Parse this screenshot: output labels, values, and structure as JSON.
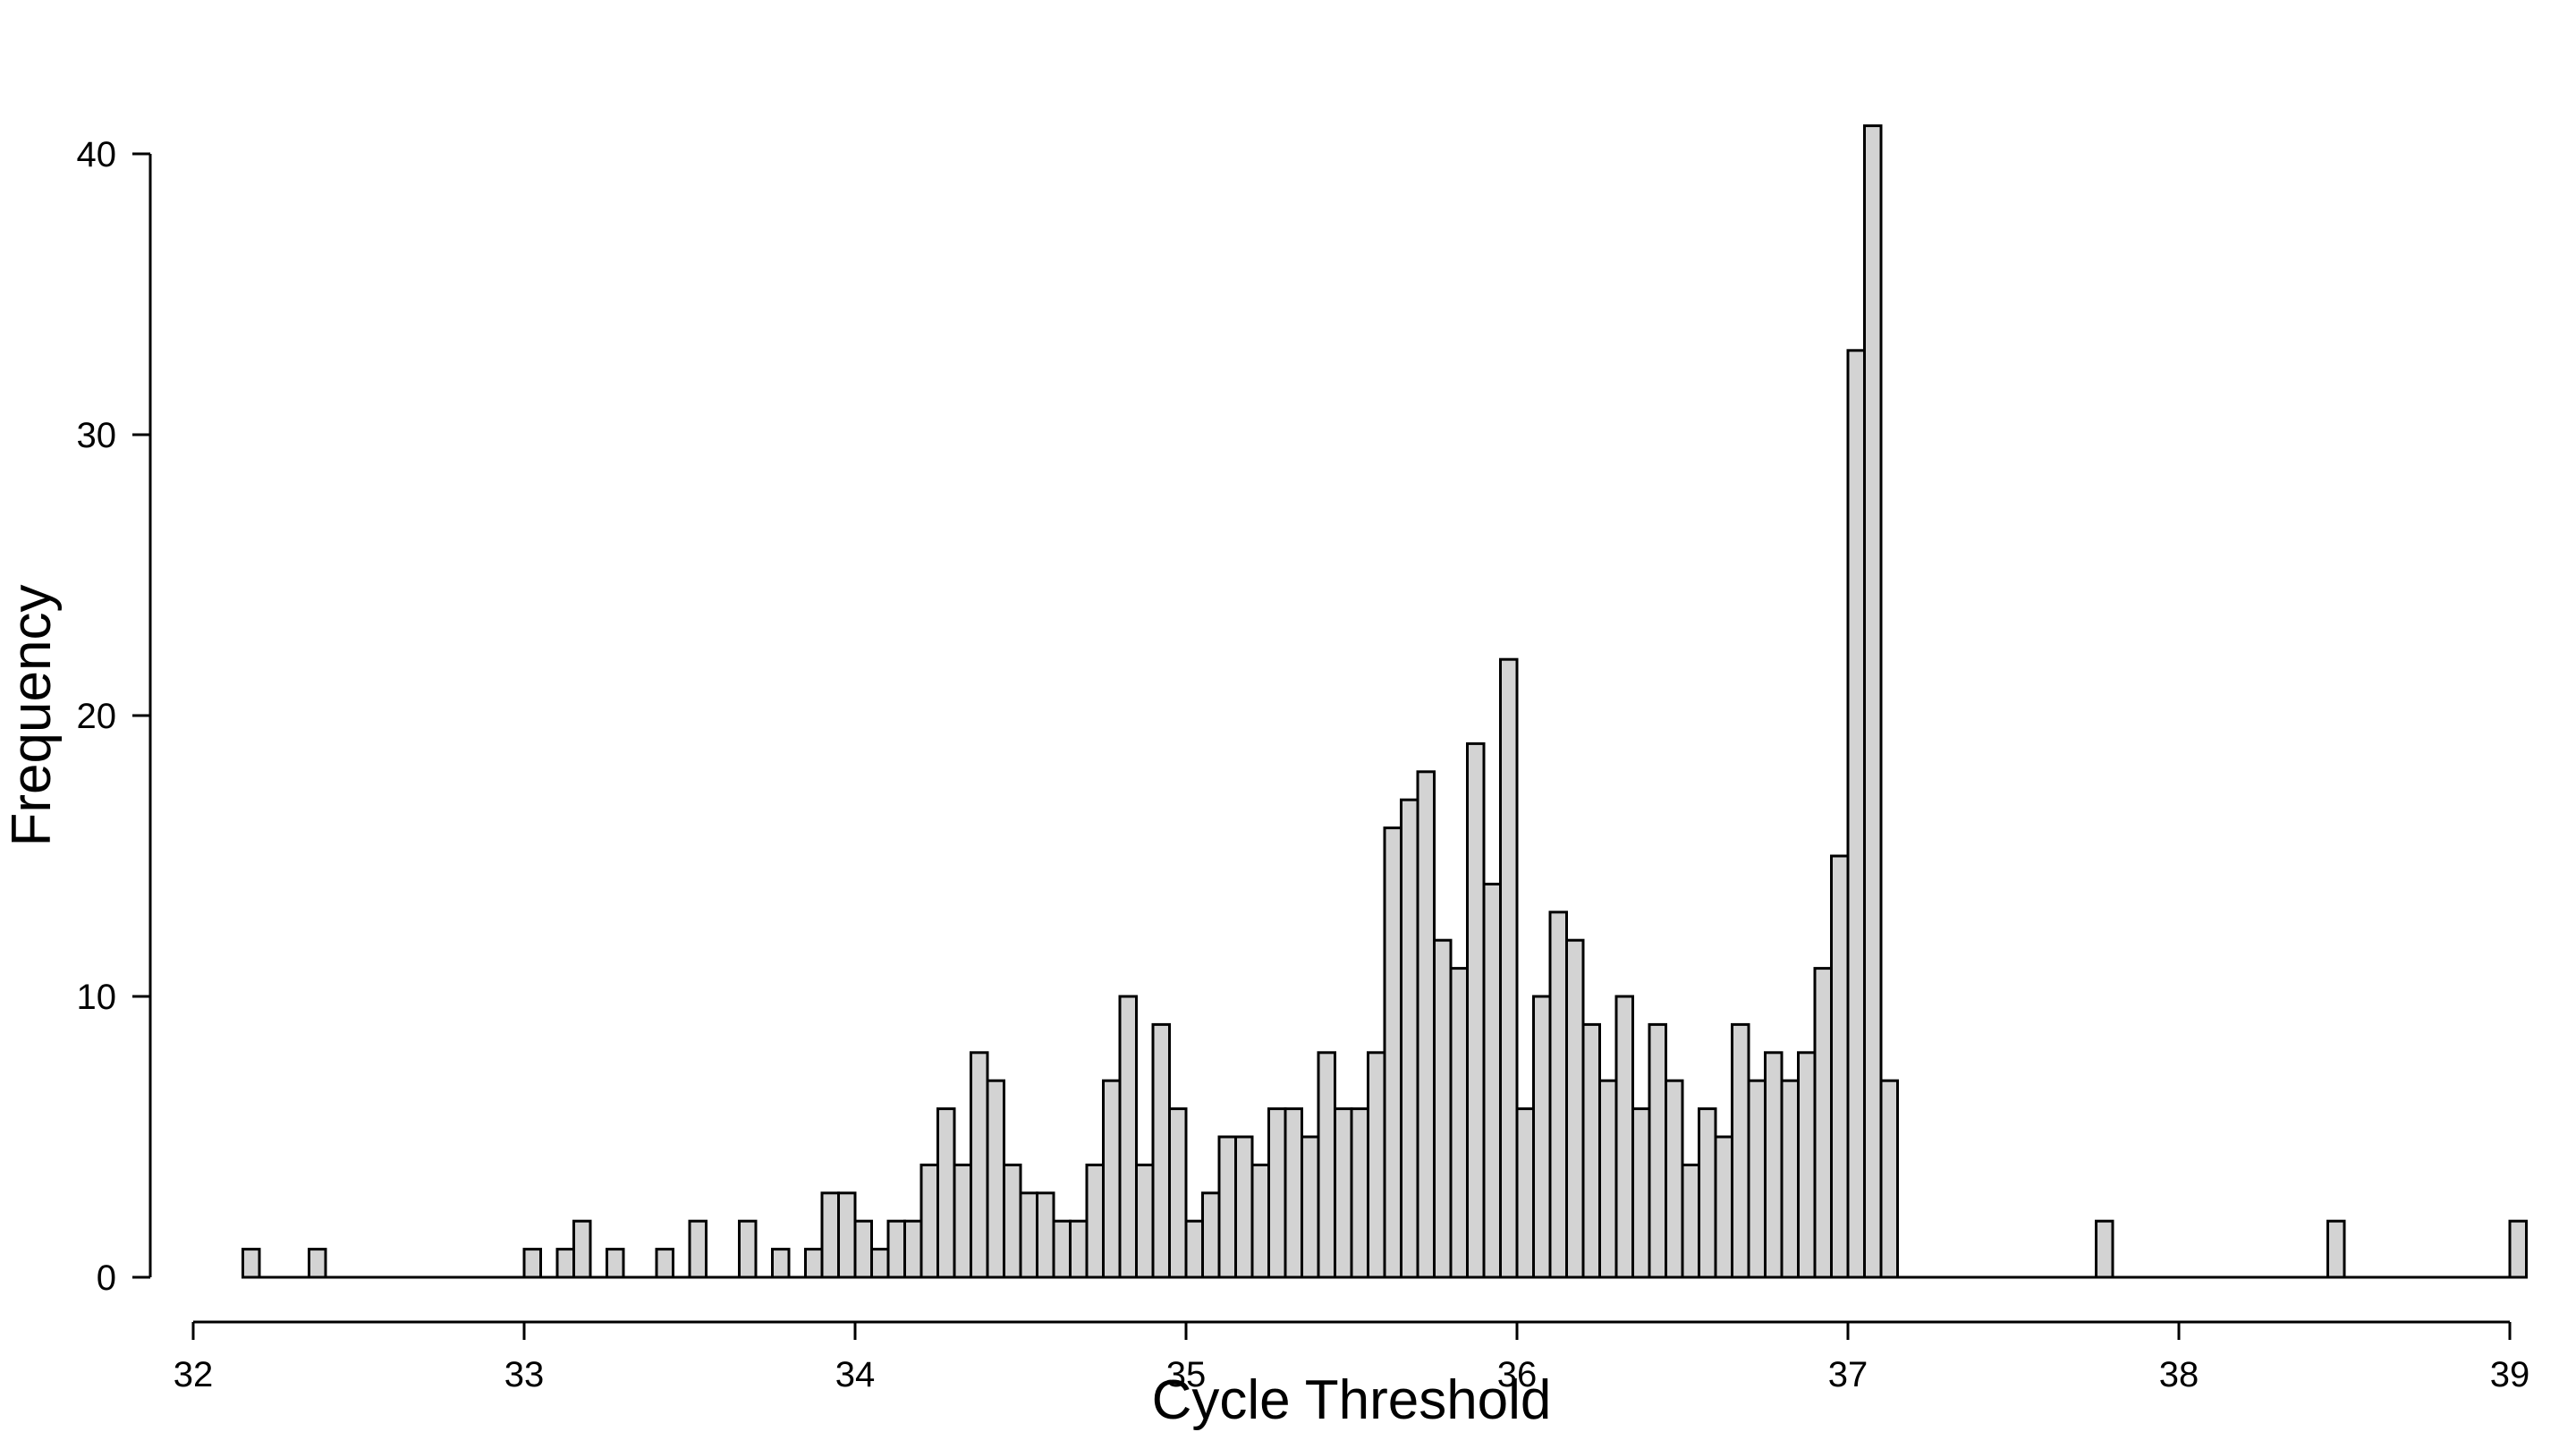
{
  "chart_data": {
    "type": "bar",
    "subtype": "histogram",
    "title": "",
    "xlabel": "Cycle Threshold",
    "ylabel": "Frequency",
    "xlim": [
      32,
      39
    ],
    "ylim": [
      0,
      40
    ],
    "x_ticks": [
      "32",
      "33",
      "34",
      "35",
      "36",
      "37",
      "38",
      "39"
    ],
    "y_ticks": [
      "0",
      "10",
      "20",
      "30",
      "40"
    ],
    "bin_width": 0.05,
    "bar_fill": "#d3d3d3",
    "bar_stroke": "#000000",
    "grid": false,
    "legend": "none",
    "bins_start": [
      32.15,
      32.35,
      33.0,
      33.1,
      33.15,
      33.25,
      33.4,
      33.5,
      33.65,
      33.75,
      33.85,
      33.9,
      33.95,
      34.0,
      34.05,
      34.1,
      34.15,
      34.2,
      34.25,
      34.3,
      34.35,
      34.4,
      34.45,
      34.5,
      34.55,
      34.6,
      34.65,
      34.7,
      34.75,
      34.8,
      34.85,
      34.9,
      34.95,
      35.0,
      35.05,
      35.1,
      35.15,
      35.2,
      35.25,
      35.3,
      35.35,
      35.4,
      35.45,
      35.5,
      35.55,
      35.6,
      35.65,
      35.7,
      35.75,
      35.8,
      35.85,
      35.9,
      35.95,
      36.0,
      36.05,
      36.1,
      36.15,
      36.2,
      36.25,
      36.3,
      36.35,
      36.4,
      36.45,
      36.5,
      36.55,
      36.6,
      36.65,
      36.7,
      36.75,
      36.8,
      36.85,
      36.9,
      36.95,
      37.0,
      37.05,
      37.1,
      37.75,
      38.45,
      39.0
    ],
    "values": [
      1,
      1,
      1,
      1,
      2,
      1,
      1,
      2,
      2,
      1,
      1,
      3,
      3,
      2,
      1,
      2,
      2,
      4,
      6,
      4,
      8,
      7,
      4,
      3,
      3,
      2,
      2,
      4,
      7,
      10,
      4,
      9,
      6,
      2,
      3,
      5,
      5,
      4,
      6,
      6,
      5,
      8,
      6,
      6,
      8,
      16,
      17,
      18,
      12,
      11,
      19,
      14,
      22,
      6,
      10,
      13,
      12,
      9,
      7,
      10,
      6,
      9,
      7,
      4,
      6,
      5,
      9,
      7,
      8,
      7,
      8,
      11,
      15,
      33,
      41,
      7,
      2,
      2,
      2
    ]
  }
}
